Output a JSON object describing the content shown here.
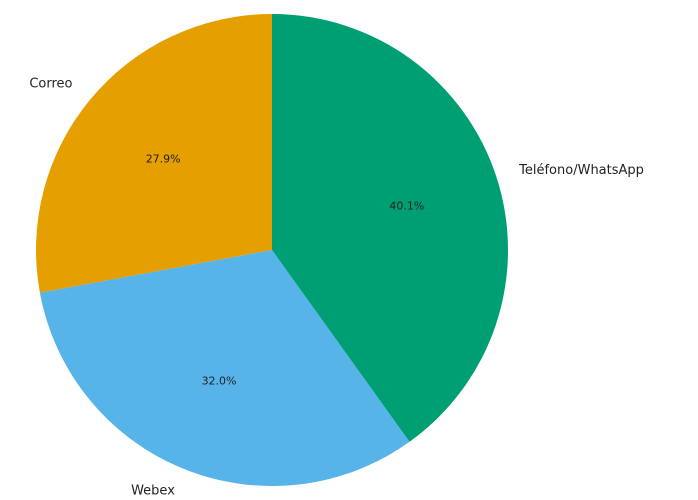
{
  "chart_data": {
    "type": "pie",
    "categories": [
      "Correo",
      "Webex",
      "Teléfono/WhatsApp"
    ],
    "values": [
      27.9,
      32.0,
      40.1
    ],
    "value_labels": [
      "27.9%",
      "32.0%",
      "40.1%"
    ],
    "colors": [
      "#E69F00",
      "#56B4E9",
      "#009E73"
    ]
  }
}
